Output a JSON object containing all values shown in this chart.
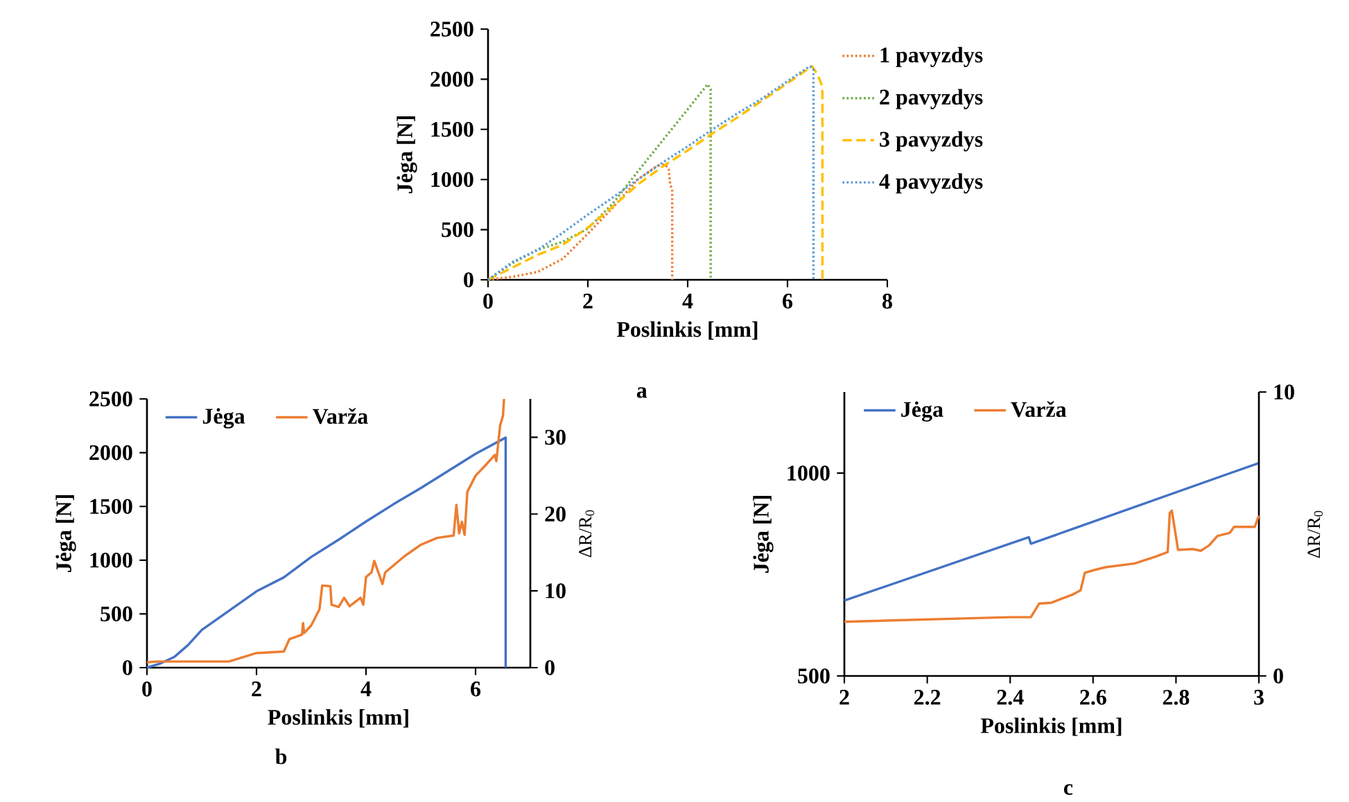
{
  "chart_data": [
    {
      "type": "line",
      "xlabel": "Poslinkis [mm]",
      "ylabel": "Jėga [N]",
      "annotations": [
        "a"
      ],
      "xlim": [
        0,
        8
      ],
      "xticks": [
        0,
        2,
        4,
        6,
        8
      ],
      "ylim": [
        0,
        2500
      ],
      "yticks": [
        0,
        500,
        1000,
        1500,
        2000,
        2500
      ],
      "legend": "right",
      "marker": "none",
      "line_style": "dotted",
      "series": [
        {
          "name": "1 pavyzdys",
          "color": "#ed7d31",
          "x": [
            0,
            0.5,
            1,
            1.5,
            2,
            2.5,
            3,
            3.4,
            3.55,
            3.62,
            3.65,
            3.69,
            3.69
          ],
          "values": [
            0,
            30,
            80,
            210,
            460,
            720,
            1000,
            1140,
            1150,
            1100,
            950,
            900,
            0
          ]
        },
        {
          "name": "2 pavyzdys",
          "color": "#70ad47",
          "x": [
            0,
            0.5,
            1,
            1.5,
            2,
            2.5,
            3,
            3.5,
            4,
            4.4,
            4.46,
            4.46
          ],
          "values": [
            0,
            170,
            300,
            380,
            510,
            760,
            1080,
            1390,
            1700,
            1950,
            1900,
            0
          ]
        },
        {
          "name": "3 pavyzdys",
          "color": "#ffc000",
          "line_style": "dashed",
          "x": [
            0,
            1,
            1.5,
            2,
            2.5,
            3,
            3.5,
            4,
            4.5,
            5,
            5.5,
            6,
            6.49,
            6.6,
            6.68,
            6.7,
            6.7
          ],
          "values": [
            0,
            250,
            350,
            520,
            730,
            950,
            1130,
            1290,
            1460,
            1620,
            1790,
            1960,
            2130,
            2050,
            1950,
            1870,
            0
          ]
        },
        {
          "name": "4 pavyzdys",
          "color": "#5b9bd5",
          "x": [
            0,
            0.5,
            1,
            1.5,
            2,
            2.5,
            3,
            3.5,
            4,
            4.5,
            5,
            5.5,
            6,
            6.45,
            6.52,
            6.52
          ],
          "values": [
            0,
            180,
            300,
            470,
            650,
            820,
            1000,
            1170,
            1330,
            1500,
            1660,
            1810,
            1980,
            2130,
            2100,
            0
          ]
        }
      ]
    },
    {
      "type": "line",
      "xlabel": "Poslinkis [mm]",
      "ylabel": "Jėga [N]",
      "y2label": "ΔR/R$_{0}$",
      "annotations": [
        "b"
      ],
      "xlim": [
        0,
        7
      ],
      "xticks": [
        0,
        2,
        4,
        6
      ],
      "ylim": [
        0,
        2500
      ],
      "yticks": [
        0,
        500,
        1000,
        1500,
        2000,
        2500
      ],
      "y2lim": [
        0,
        35
      ],
      "y2ticks": [
        0,
        10,
        20,
        30
      ],
      "legend": "top",
      "marker": "none",
      "line_style": "solid",
      "series": [
        {
          "name": "Jėga",
          "color": "#4472c4",
          "x": [
            0,
            0.25,
            0.5,
            0.75,
            1,
            1.5,
            2,
            2.5,
            3,
            3.5,
            4,
            4.5,
            5,
            5.5,
            6,
            6.55,
            6.55
          ],
          "values": [
            0,
            40,
            100,
            210,
            350,
            530,
            710,
            840,
            1030,
            1190,
            1360,
            1520,
            1670,
            1830,
            1990,
            2140,
            0
          ]
        },
        {
          "name": "Varža",
          "color": "#ed7d31",
          "axis": "y2",
          "x": [
            0,
            0.2,
            1.5,
            2,
            2.5,
            2.6,
            2.83,
            2.85,
            2.87,
            3.0,
            3.15,
            3.2,
            3.35,
            3.37,
            3.5,
            3.6,
            3.7,
            3.9,
            3.95,
            4.0,
            4.1,
            4.15,
            4.3,
            4.35,
            4.7,
            5.0,
            5.3,
            5.6,
            5.65,
            5.7,
            5.75,
            5.8,
            5.85,
            6.0,
            6.2,
            6.35,
            6.38,
            6.45,
            6.5,
            6.52
          ],
          "values": [
            0.7,
            0.8,
            0.8,
            1.9,
            2.1,
            3.7,
            4.3,
            5.8,
            4.5,
            5.5,
            7.6,
            10.7,
            10.6,
            8.2,
            7.9,
            9.1,
            8.0,
            9.1,
            8.2,
            11.8,
            12.4,
            13.9,
            10.9,
            12.4,
            14.5,
            16.0,
            16.9,
            17.2,
            21.2,
            17.5,
            19.0,
            17.3,
            22.9,
            25.0,
            26.5,
            27.7,
            26.9,
            31.6,
            32.8,
            35.0
          ]
        }
      ]
    },
    {
      "type": "line",
      "xlabel": "Poslinkis [mm]",
      "ylabel": "Jėga [N]",
      "y2label": "ΔR/R$_{0}$",
      "annotations": [
        "c"
      ],
      "xlim": [
        2,
        3
      ],
      "xticks": [
        2,
        2.2,
        2.4,
        2.6,
        2.8,
        3
      ],
      "ylim": [
        500,
        1200
      ],
      "yticks": [
        500,
        1000
      ],
      "y2lim": [
        0,
        10
      ],
      "y2ticks": [
        0,
        10
      ],
      "legend": "top",
      "marker": "none",
      "line_style": "solid",
      "series": [
        {
          "name": "Jėga",
          "color": "#4472c4",
          "x": [
            2,
            2.445,
            2.45,
            3
          ],
          "values": [
            686,
            842,
            826,
            1025
          ]
        },
        {
          "name": "Varža",
          "color": "#ed7d31",
          "axis": "y2",
          "x": [
            2,
            2.4,
            2.45,
            2.47,
            2.5,
            2.52,
            2.55,
            2.57,
            2.58,
            2.6,
            2.63,
            2.7,
            2.75,
            2.78,
            2.785,
            2.79,
            2.805,
            2.84,
            2.86,
            2.88,
            2.9,
            2.93,
            2.94,
            2.99,
            3.0
          ],
          "values": [
            1.91,
            2.07,
            2.07,
            2.55,
            2.58,
            2.7,
            2.86,
            3.02,
            3.63,
            3.72,
            3.83,
            3.96,
            4.2,
            4.36,
            5.74,
            5.82,
            4.44,
            4.47,
            4.41,
            4.6,
            4.93,
            5.04,
            5.25,
            5.25,
            5.65
          ]
        }
      ]
    }
  ]
}
